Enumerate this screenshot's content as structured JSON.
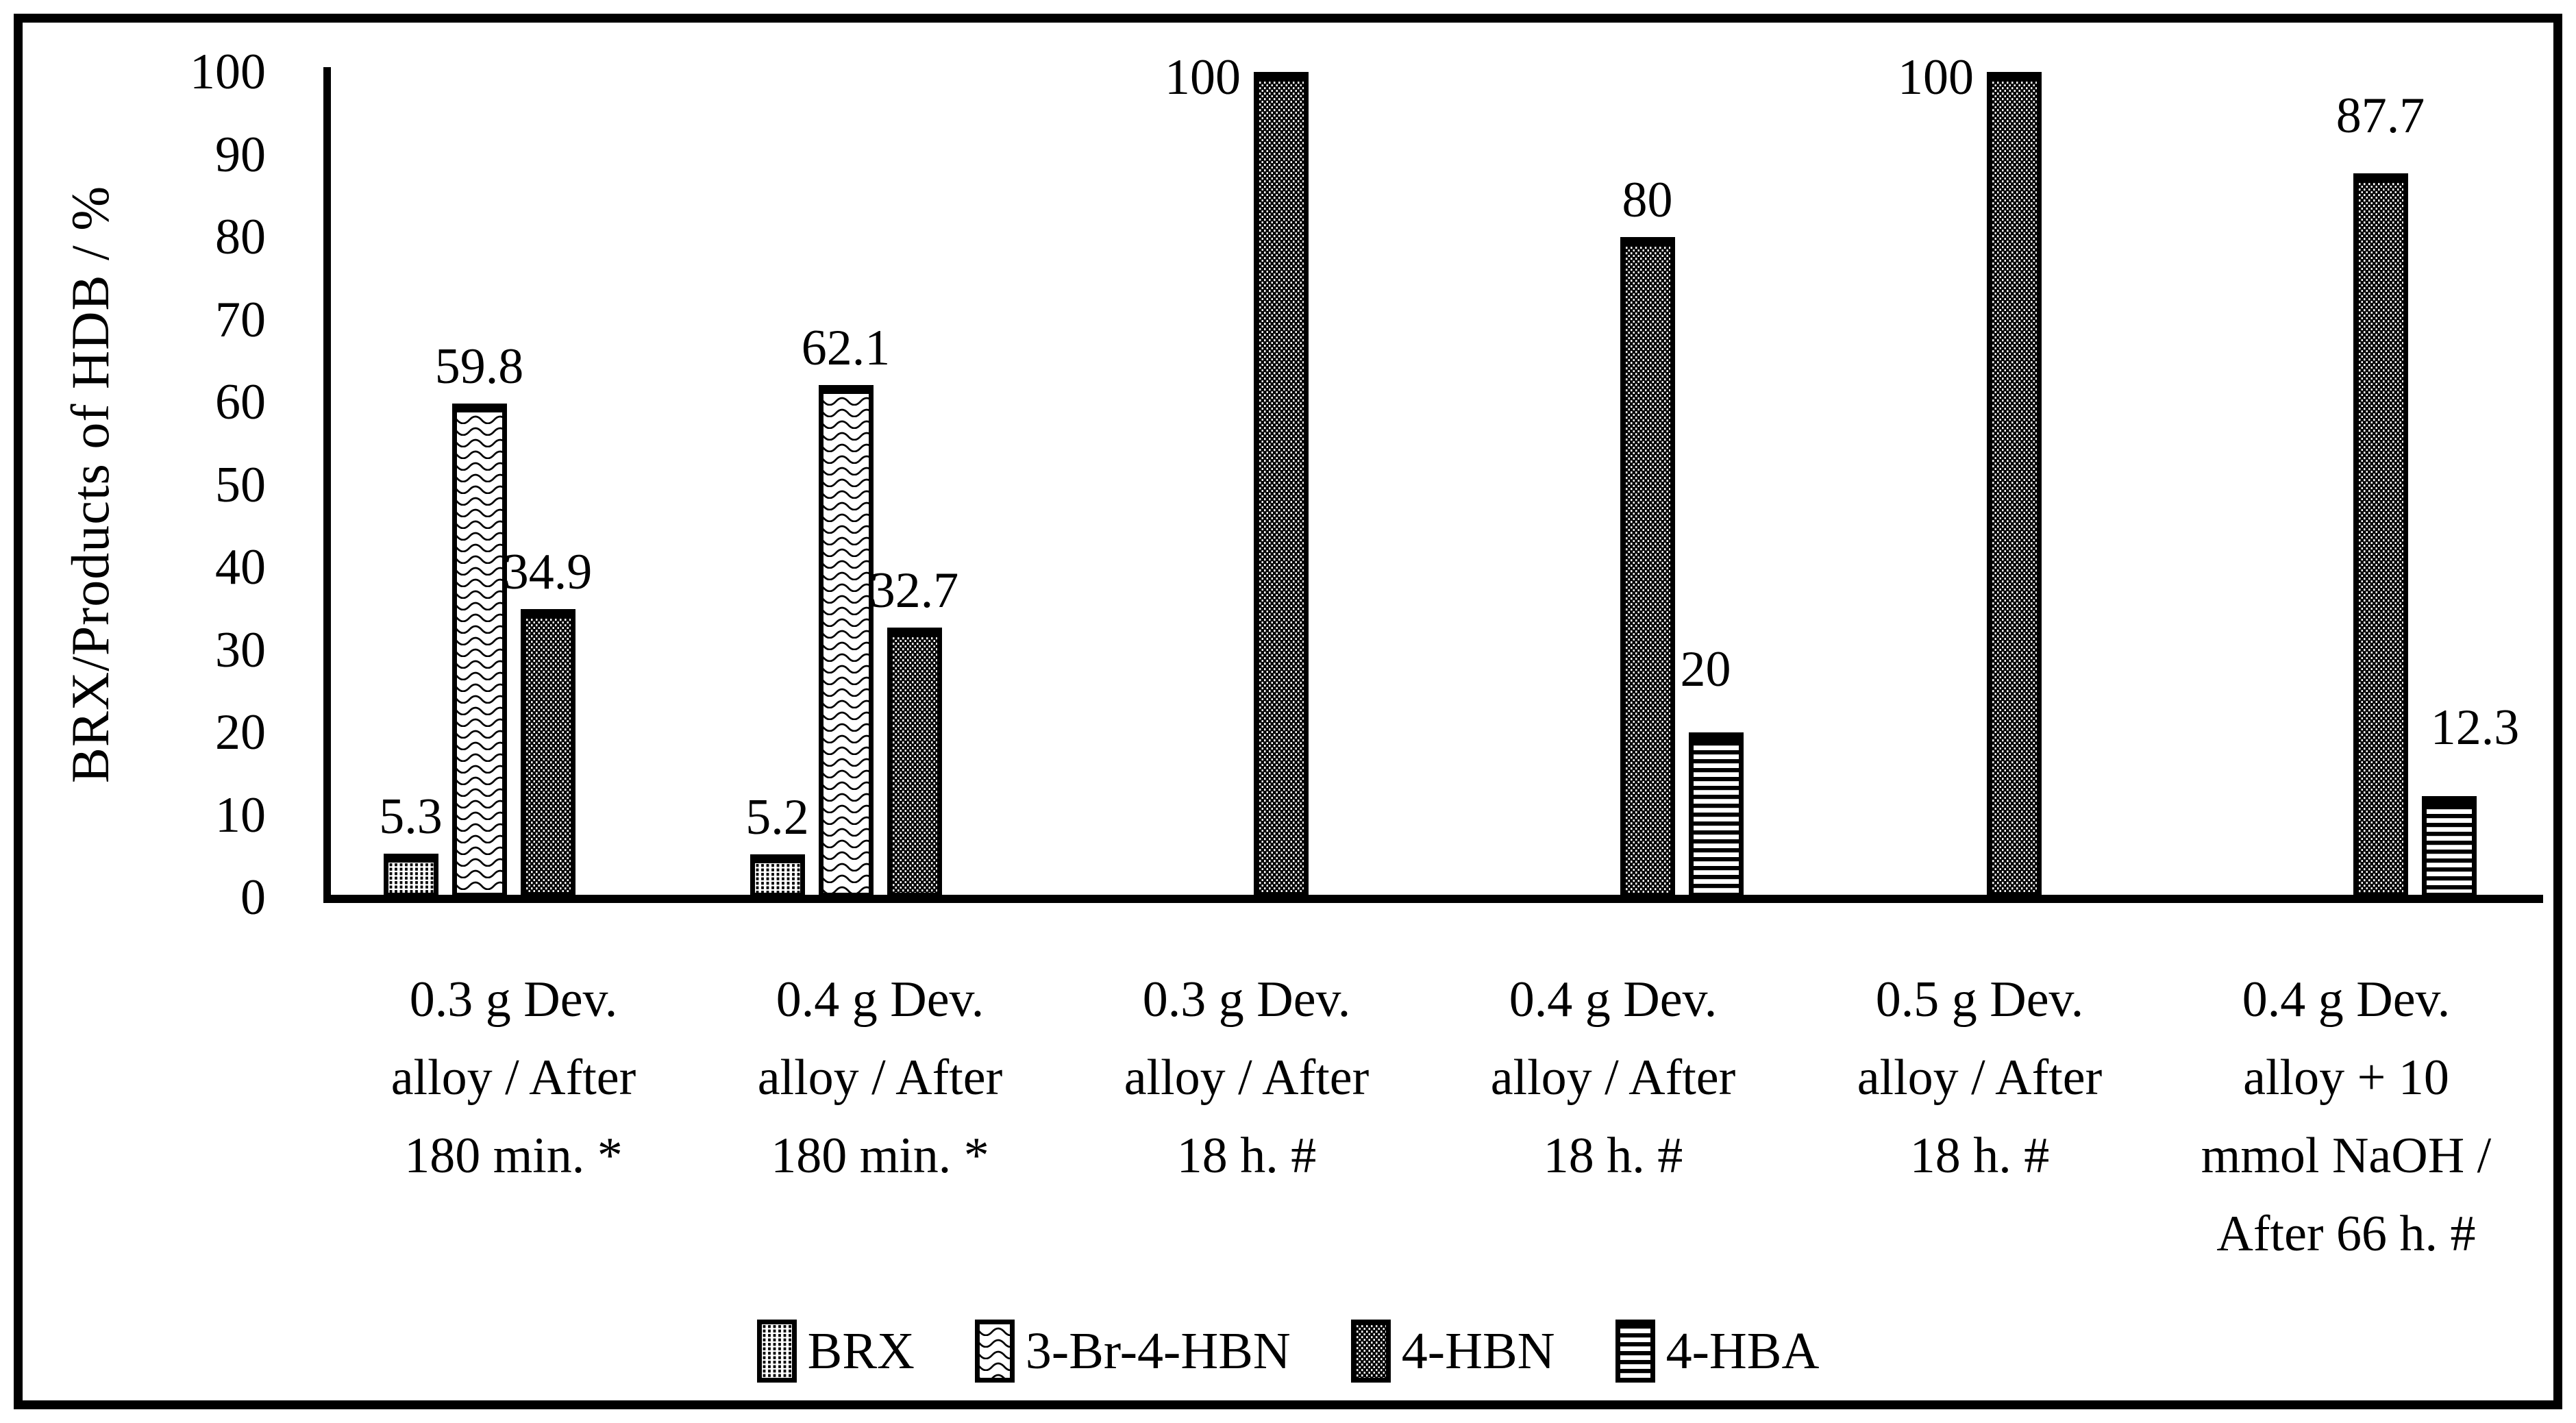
{
  "chart_data": {
    "type": "bar",
    "title": "",
    "ylabel": "BRX/Products of HDB / %",
    "xlabel": "",
    "ylim": [
      0,
      100
    ],
    "yticks": [
      100,
      90,
      80,
      70,
      60,
      50,
      40,
      30,
      20,
      10,
      0
    ],
    "grid": false,
    "legend_position": "bottom",
    "categories": [
      {
        "label": "0.3 g Dev. alloy / After 180 min. *",
        "lines": [
          "0.3 g Dev.",
          "alloy / After",
          "180 min. *"
        ]
      },
      {
        "label": "0.4 g Dev. alloy / After 180 min. *",
        "lines": [
          "0.4 g Dev.",
          "alloy / After",
          "180 min. *"
        ]
      },
      {
        "label": "0.3 g Dev. alloy / After 18 h. #",
        "lines": [
          "0.3 g Dev.",
          "alloy / After",
          "18 h. #"
        ]
      },
      {
        "label": "0.4 g Dev. alloy / After 18 h. #",
        "lines": [
          "0.4 g Dev.",
          "alloy / After",
          "18 h. #"
        ]
      },
      {
        "label": "0.5 g Dev. alloy / After 18 h. #",
        "lines": [
          "0.5 g Dev.",
          "alloy / After",
          "18 h. #"
        ]
      },
      {
        "label": "0.4 g Dev. alloy + 10 mmol NaOH / After 66 h. #",
        "lines": [
          "0.4 g Dev.",
          "alloy + 10",
          "mmol NaOH /",
          "After 66 h. #"
        ]
      }
    ],
    "series": [
      {
        "name": "BRX",
        "pattern": "dots-light",
        "values": [
          5.3,
          5.2,
          null,
          null,
          null,
          null
        ]
      },
      {
        "name": "3-Br-4-HBN",
        "pattern": "waves",
        "values": [
          59.8,
          62.1,
          null,
          null,
          null,
          null
        ]
      },
      {
        "name": "4-HBN",
        "pattern": "dots-dark",
        "values": [
          34.9,
          32.7,
          100,
          80,
          100,
          87.7
        ]
      },
      {
        "name": "4-HBA",
        "pattern": "hlines",
        "values": [
          null,
          null,
          null,
          20,
          null,
          12.3
        ]
      }
    ],
    "bar_value_labels": {
      "BRX": [
        "5.3",
        "5.2"
      ],
      "3-Br-4-HBN": [
        "59.8",
        "62.1"
      ],
      "4-HBN": [
        "34.9",
        "32.7",
        "100",
        "80",
        "100",
        "87.7"
      ],
      "4-HBA": [
        "20",
        "12.3"
      ]
    },
    "colors": {
      "ink": "#000000",
      "background": "#ffffff"
    }
  }
}
